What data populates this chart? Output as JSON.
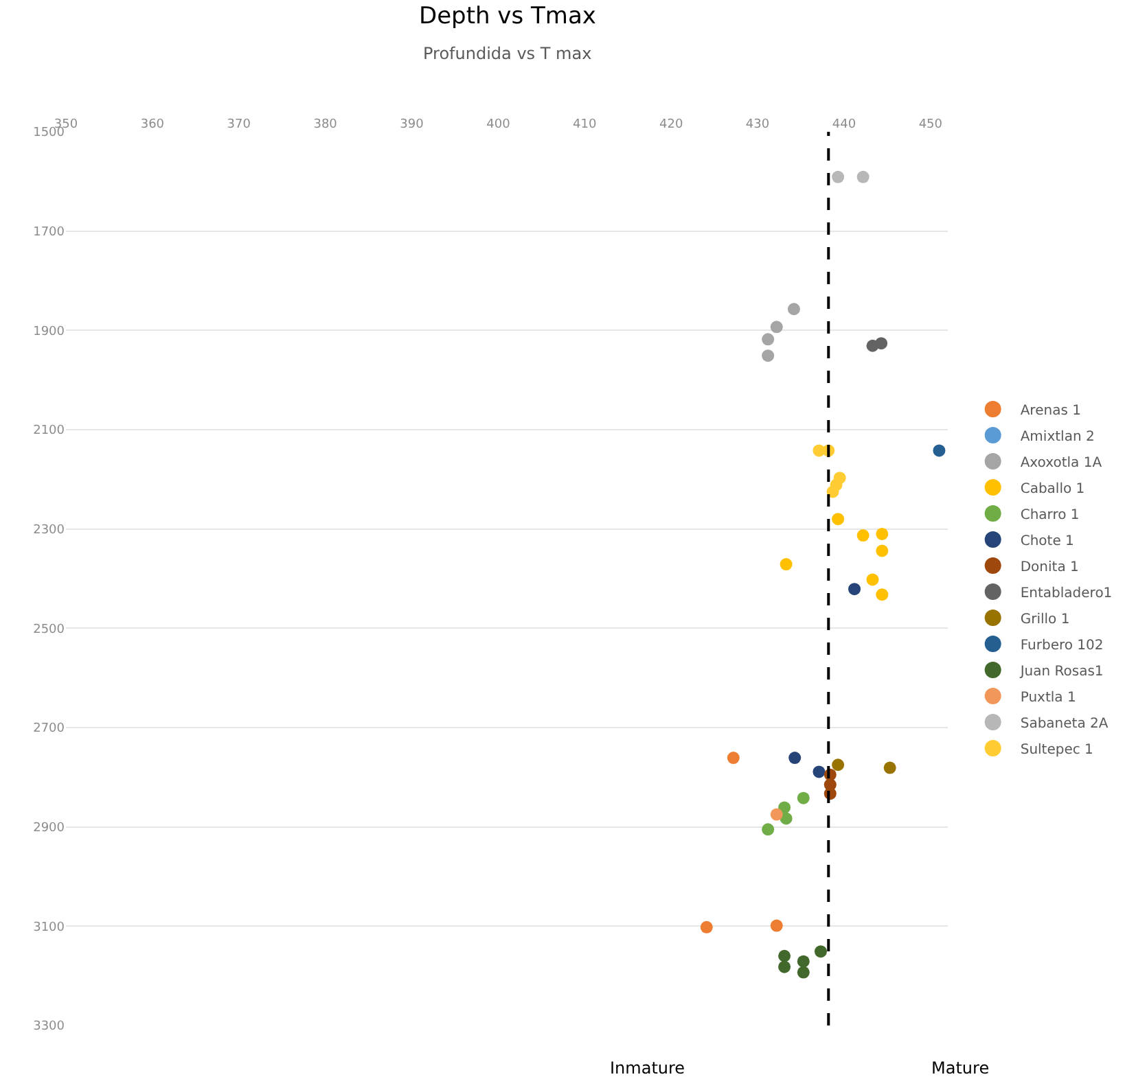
{
  "chart_data": {
    "type": "scatter",
    "title": "Depth vs Tmax",
    "subtitle": "Profundida vs T max",
    "annotations": [
      "Inmature",
      "Mature"
    ],
    "xlim": [
      350,
      452
    ],
    "xticks": [
      350,
      360,
      370,
      380,
      390,
      400,
      410,
      420,
      430,
      440,
      450
    ],
    "ylim": [
      3300,
      1500
    ],
    "yticks": [
      1500,
      1700,
      1900,
      2100,
      2300,
      2500,
      2700,
      2900,
      3100,
      3300
    ],
    "grid": "y",
    "legend": "right",
    "marker": "circle",
    "ref_lines": [
      {
        "axis": "x",
        "value": 438.2,
        "color": "#000000",
        "line_style": "dashed"
      }
    ],
    "series": [
      {
        "name": "Arenas 1",
        "color": "#ed7d31",
        "x": [
          427.2,
          424.1,
          432.2
        ],
        "values": [
          2761,
          3102,
          3099
        ]
      },
      {
        "name": "Amixtlan 2",
        "color": "#5b9bd5",
        "x": [
          null
        ],
        "values": [
          null
        ]
      },
      {
        "name": "Axoxotla 1A",
        "color": "#a5a5a5",
        "x": [
          434.2,
          432.2,
          431.2,
          431.2
        ],
        "values": [
          1857,
          1893,
          1918,
          1951
        ]
      },
      {
        "name": "Caballo 1",
        "color": "#ffc000",
        "x": [
          439.3,
          442.2,
          444.4,
          444.4,
          433.3,
          443.3,
          444.4
        ],
        "values": [
          2280,
          2313,
          2310,
          2344,
          2371,
          2402,
          2432
        ]
      },
      {
        "name": "Charro 1",
        "color": "#70ad47",
        "x": [
          435.3,
          433.1,
          433.3,
          431.2
        ],
        "values": [
          2842,
          2861,
          2883,
          2905
        ]
      },
      {
        "name": "Chote 1",
        "color": "#264478",
        "x": [
          441.2,
          434.3,
          437.1
        ],
        "values": [
          2421,
          2761,
          2789
        ]
      },
      {
        "name": "Donita 1",
        "color": "#9e480e",
        "x": [
          null,
          438.4,
          438.4,
          438.4
        ],
        "values": [
          null,
          2795,
          2815,
          2833
        ]
      },
      {
        "name": "Entabladero1",
        "color": "#636363",
        "x": [
          443.3,
          444.3
        ],
        "values": [
          1931,
          1926
        ]
      },
      {
        "name": "Grillo 1",
        "color": "#997300",
        "x": [
          439.3,
          445.3
        ],
        "values": [
          2775,
          2781
        ]
      },
      {
        "name": "Furbero 102",
        "color": "#255e91",
        "x": [
          451
        ],
        "values": [
          2142
        ]
      },
      {
        "name": "Juan Rosas1",
        "color": "#43682b",
        "x": [
          437.3,
          433.1,
          433.1,
          435.3,
          435.3
        ],
        "values": [
          3151,
          3160,
          3182,
          3171,
          3193
        ]
      },
      {
        "name": "Puxtla 1",
        "color": "#f1975a",
        "x": [
          432.2
        ],
        "values": [
          2875
        ]
      },
      {
        "name": "Sabaneta 2A",
        "color": "#b7b7b7",
        "x": [
          439.3,
          442.2
        ],
        "values": [
          1591,
          1591
        ]
      },
      {
        "name": "Sultepec 1",
        "color": "#ffcd33",
        "x": [
          437.1,
          438.2,
          439.5,
          439.1,
          438.7
        ],
        "values": [
          2142,
          2142,
          2197,
          2211,
          2225
        ]
      }
    ]
  }
}
